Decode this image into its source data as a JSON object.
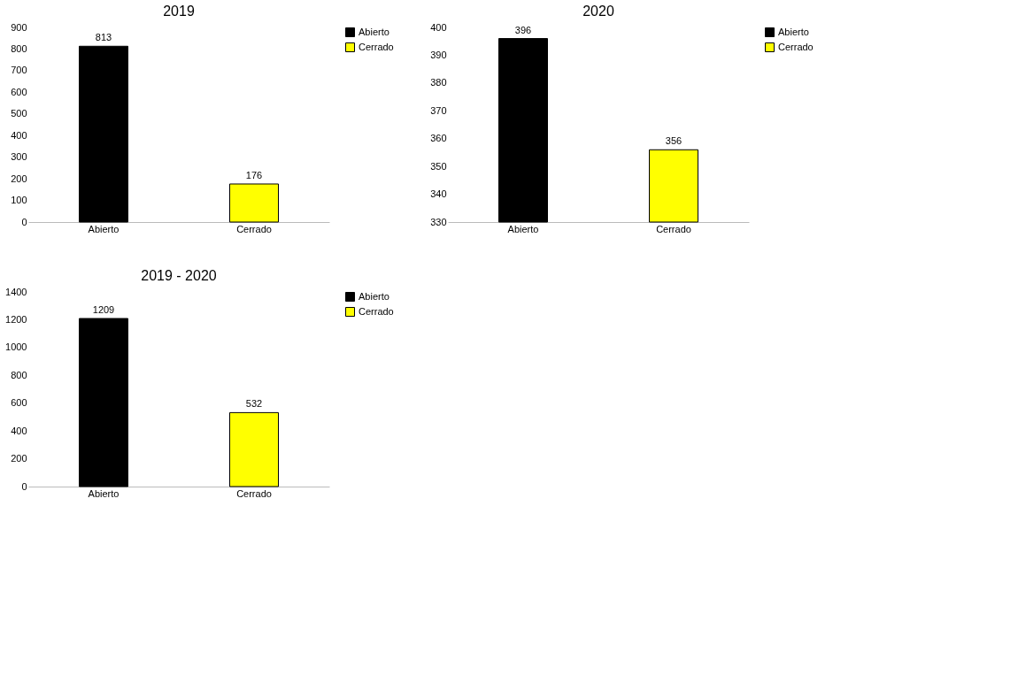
{
  "chart_data": [
    {
      "type": "bar",
      "title": "2019",
      "categories": [
        "Abierto",
        "Cerrado"
      ],
      "series": [
        {
          "name": "Abierto",
          "color": "#000000",
          "values": [
            813,
            null
          ]
        },
        {
          "name": "Cerrado",
          "color": "#ffff00",
          "values": [
            null,
            176
          ]
        }
      ],
      "ylim": [
        0,
        900
      ],
      "yticks": [
        0,
        100,
        200,
        300,
        400,
        500,
        600,
        700,
        800,
        900
      ],
      "grid": false,
      "legend": "right",
      "data_labels": true
    },
    {
      "type": "bar",
      "title": "2020",
      "categories": [
        "Abierto",
        "Cerrado"
      ],
      "series": [
        {
          "name": "Abierto",
          "color": "#000000",
          "values": [
            396,
            null
          ]
        },
        {
          "name": "Cerrado",
          "color": "#ffff00",
          "values": [
            null,
            356
          ]
        }
      ],
      "ylim": [
        330,
        400
      ],
      "yticks": [
        330,
        340,
        350,
        360,
        370,
        380,
        390,
        400
      ],
      "grid": false,
      "legend": "right",
      "data_labels": true
    },
    {
      "type": "bar",
      "title": "2019 - 2020",
      "categories": [
        "Abierto",
        "Cerrado"
      ],
      "series": [
        {
          "name": "Abierto",
          "color": "#000000",
          "values": [
            1209,
            null
          ]
        },
        {
          "name": "Cerrado",
          "color": "#ffff00",
          "values": [
            null,
            532
          ]
        }
      ],
      "ylim": [
        0,
        1400
      ],
      "yticks": [
        0,
        200,
        400,
        600,
        800,
        1000,
        1200,
        1400
      ],
      "grid": false,
      "legend": "right",
      "data_labels": true
    }
  ]
}
